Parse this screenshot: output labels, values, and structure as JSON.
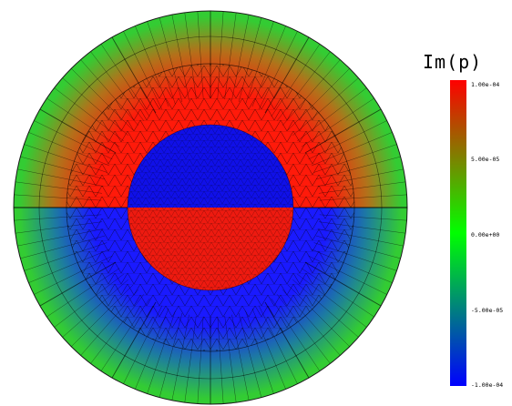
{
  "colorbar": {
    "title": "Im(p)",
    "ticks": [
      "1.00e-04",
      "5.00e-05",
      "0.00e+00",
      "-5.00e-05",
      "-1.00e-04"
    ],
    "range": [
      -0.0001,
      0.0001
    ],
    "colormap": [
      "#0000ff",
      "#00ff00",
      "#ff0000"
    ]
  },
  "figure": {
    "mesh_line_color": "#000000",
    "outer_layer_color": "#33cc33",
    "upper_region_value": 0.0001,
    "lower_region_value": -0.0001,
    "inner_sphere_top_value": -0.0001,
    "inner_sphere_bottom_value": 0.0001
  }
}
